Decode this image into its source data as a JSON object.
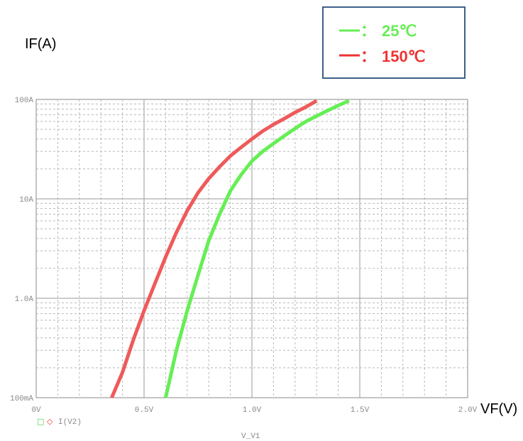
{
  "chart_data": {
    "type": "line",
    "ylabel": "IF(A)",
    "xlabel": "VF(V)",
    "xlabel_bottom": "V_V1",
    "x_ticks": [
      "0V",
      "0.5V",
      "1.0V",
      "1.5V",
      "2.0V"
    ],
    "y_ticks": [
      "100mA",
      "1.0A",
      "10A",
      "100A"
    ],
    "xlim": [
      0,
      2.0
    ],
    "ylim": [
      0.1,
      100
    ],
    "y_scale": "log",
    "grid": true,
    "trace_label": "I(V2)",
    "legend_marker_green": "□",
    "legend_marker_red": "◇",
    "legend": {
      "placement": "top-right",
      "colon": "："
    },
    "series": [
      {
        "name": "25℃",
        "color": "#66ee55",
        "x": [
          0.6,
          0.65,
          0.7,
          0.75,
          0.8,
          0.85,
          0.9,
          0.95,
          1.0,
          1.05,
          1.1,
          1.15,
          1.2,
          1.25,
          1.3,
          1.35,
          1.4,
          1.45
        ],
        "y": [
          0.1,
          0.3,
          0.75,
          1.7,
          3.8,
          7.0,
          12.0,
          17.5,
          24.0,
          30.0,
          36.0,
          43.0,
          51.0,
          60.0,
          68.0,
          77.0,
          87.0,
          97.0
        ]
      },
      {
        "name": "150℃",
        "color": "#ee5a5a",
        "x": [
          0.35,
          0.4,
          0.45,
          0.5,
          0.55,
          0.6,
          0.65,
          0.7,
          0.75,
          0.8,
          0.85,
          0.9,
          0.95,
          1.0,
          1.05,
          1.1,
          1.15,
          1.2,
          1.25,
          1.3
        ],
        "y": [
          0.1,
          0.18,
          0.38,
          0.75,
          1.4,
          2.6,
          4.6,
          7.6,
          11.5,
          16.0,
          21.0,
          27.0,
          33.0,
          40.0,
          48.0,
          56.0,
          64.0,
          74.0,
          84.0,
          97.0
        ]
      }
    ]
  }
}
